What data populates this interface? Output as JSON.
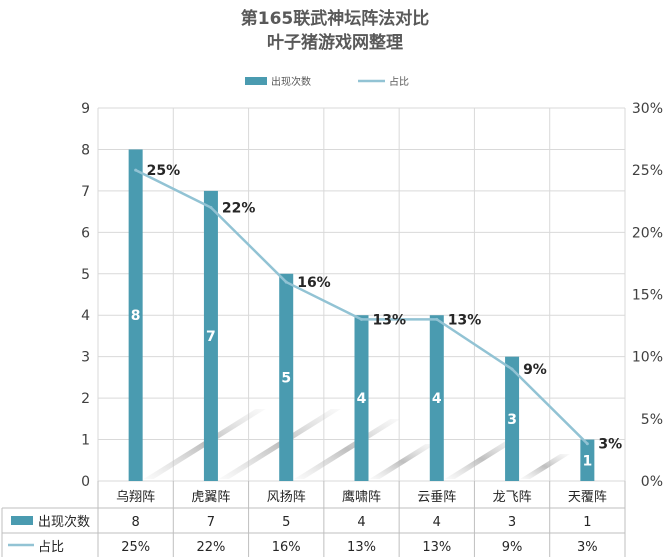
{
  "chart_data": {
    "type": "bar",
    "title": "第165联武神坛阵法对比",
    "subtitle": "叶子猪游戏网整理",
    "categories": [
      "乌翔阵",
      "虎翼阵",
      "风扬阵",
      "鹰啸阵",
      "云垂阵",
      "龙飞阵",
      "天覆阵"
    ],
    "series": [
      {
        "name": "出现次数",
        "type": "bar",
        "axis": "left",
        "color": "#4a9bb0",
        "values": [
          8,
          7,
          5,
          4,
          4,
          3,
          1
        ],
        "labels": [
          "8",
          "7",
          "5",
          "4",
          "4",
          "3",
          "1"
        ]
      },
      {
        "name": "占比",
        "type": "line",
        "axis": "right",
        "color": "#92c3d4",
        "values": [
          25,
          22,
          16,
          13,
          13,
          9,
          3
        ],
        "labels": [
          "25%",
          "22%",
          "16%",
          "13%",
          "13%",
          "9%",
          "3%"
        ]
      }
    ],
    "y_left": {
      "range": [
        0,
        9
      ],
      "ticks": [
        "0",
        "1",
        "2",
        "3",
        "4",
        "5",
        "6",
        "7",
        "8",
        "9"
      ]
    },
    "y_right": {
      "range": [
        0,
        30
      ],
      "ticks": [
        "0%",
        "5%",
        "10%",
        "15%",
        "20%",
        "25%",
        "30%"
      ]
    },
    "grid": true,
    "legend": "top-center",
    "data_table": true
  }
}
